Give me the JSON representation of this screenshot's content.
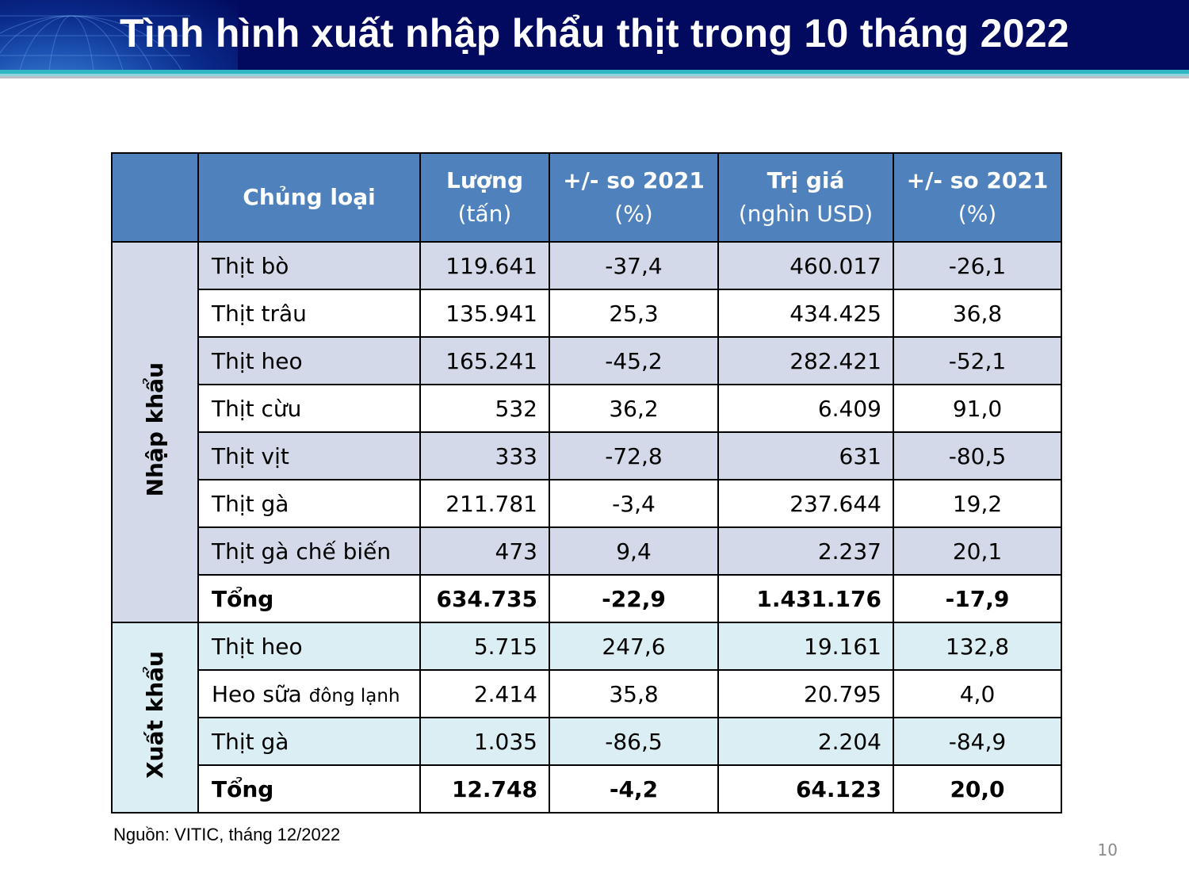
{
  "slide": {
    "title": "Tình hình xuất nhập khẩu thịt trong 10 tháng 2022",
    "source": "Nguồn: VITIC, tháng 12/2022",
    "page_number": "10"
  },
  "colors": {
    "title_bar": "#010a5e",
    "header_fill": "#4f81bd",
    "import_shade": "#d3d9e9",
    "export_shade": "#dbeef3"
  },
  "table": {
    "headers": {
      "category": "Chủng loại",
      "volume_title": "Lượng",
      "volume_unit": "(tấn)",
      "volume_change_title": "+/- so 2021",
      "volume_change_unit": "(%)",
      "value_title": "Trị giá",
      "value_unit": "(nghìn USD)",
      "value_change_title": "+/- so 2021",
      "value_change_unit": "(%)"
    },
    "import": {
      "label": "Nhập khẩu",
      "rows": [
        {
          "name": "Thịt bò",
          "volume": "119.641",
          "volume_change": "-37,4",
          "value": "460.017",
          "value_change": "-26,1"
        },
        {
          "name": "Thịt trâu",
          "volume": "135.941",
          "volume_change": "25,3",
          "value": "434.425",
          "value_change": "36,8"
        },
        {
          "name": "Thịt heo",
          "volume": "165.241",
          "volume_change": "-45,2",
          "value": "282.421",
          "value_change": "-52,1"
        },
        {
          "name": "Thịt cừu",
          "volume": "532",
          "volume_change": "36,2",
          "value": "6.409",
          "value_change": "91,0"
        },
        {
          "name": "Thịt vịt",
          "volume": "333",
          "volume_change": "-72,8",
          "value": "631",
          "value_change": "-80,5"
        },
        {
          "name": "Thịt gà",
          "volume": "211.781",
          "volume_change": "-3,4",
          "value": "237.644",
          "value_change": "19,2"
        },
        {
          "name": "Thịt gà chế biến",
          "volume": "473",
          "volume_change": "9,4",
          "value": "2.237",
          "value_change": "20,1"
        }
      ],
      "total": {
        "name": "Tổng",
        "volume": "634.735",
        "volume_change": "-22,9",
        "value": "1.431.176",
        "value_change": "-17,9"
      }
    },
    "export": {
      "label": "Xuất khẩu",
      "rows": [
        {
          "name": "Thịt heo",
          "name_suffix": "",
          "volume": "5.715",
          "volume_change": "247,6",
          "value": "19.161",
          "value_change": "132,8"
        },
        {
          "name": "Heo sữa",
          "name_suffix": "đông lạnh",
          "volume": "2.414",
          "volume_change": "35,8",
          "value": "20.795",
          "value_change": "4,0"
        },
        {
          "name": "Thịt gà",
          "name_suffix": "",
          "volume": "1.035",
          "volume_change": "-86,5",
          "value": "2.204",
          "value_change": "-84,9"
        }
      ],
      "total": {
        "name": "Tổng",
        "volume": "12.748",
        "volume_change": "-4,2",
        "value": "64.123",
        "value_change": "20,0"
      }
    }
  }
}
